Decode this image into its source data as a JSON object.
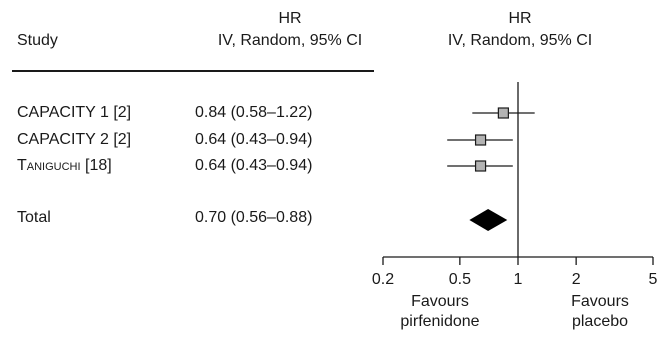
{
  "table": {
    "col_study_header": "Study",
    "col_hr_header_line1": "HR",
    "col_hr_header_line2": "IV, Random, 95% CI",
    "plot_header_line1": "HR",
    "plot_header_line2": "IV, Random, 95% CI",
    "rows": [
      {
        "study_main": "CAPACITY 1",
        "study_ref": " [2]",
        "ci_text": "0.84 (0.58–1.22)",
        "small_caps": false
      },
      {
        "study_main": "CAPACITY 2",
        "study_ref": " [2]",
        "ci_text": "0.64 (0.43–0.94)",
        "small_caps": false
      },
      {
        "study_main": "Taniguchi",
        "study_ref": " [18]",
        "ci_text": "0.64 (0.43–0.94)",
        "small_caps": true
      }
    ],
    "total": {
      "label": "Total",
      "ci_text": "0.70 (0.56–0.88)"
    }
  },
  "footer": {
    "favours_left_line1": "Favours",
    "favours_left_line2": "pirfenidone",
    "favours_right_line1": "Favours",
    "favours_right_line2": "placebo"
  },
  "chart_data": {
    "type": "forest",
    "scale": "log",
    "xlim": [
      0.2,
      5
    ],
    "reference_line": 1,
    "ticks": [
      {
        "value": 0.2,
        "label": "0.2"
      },
      {
        "value": 0.5,
        "label": "0.5"
      },
      {
        "value": 1,
        "label": "1"
      },
      {
        "value": 2,
        "label": "2"
      },
      {
        "value": 5,
        "label": "5"
      }
    ],
    "studies": [
      {
        "name": "CAPACITY 1 [2]",
        "hr": 0.84,
        "lower": 0.58,
        "upper": 1.22
      },
      {
        "name": "CAPACITY 2 [2]",
        "hr": 0.64,
        "lower": 0.43,
        "upper": 0.94
      },
      {
        "name": "Taniguchi [18]",
        "hr": 0.64,
        "lower": 0.43,
        "upper": 0.94
      }
    ],
    "pooled": {
      "name": "Total",
      "hr": 0.7,
      "lower": 0.56,
      "upper": 0.88
    },
    "colors": {
      "study_marker": "#b3b3b3",
      "pooled_marker": "#000000",
      "lines": "#1a1a1a"
    }
  }
}
